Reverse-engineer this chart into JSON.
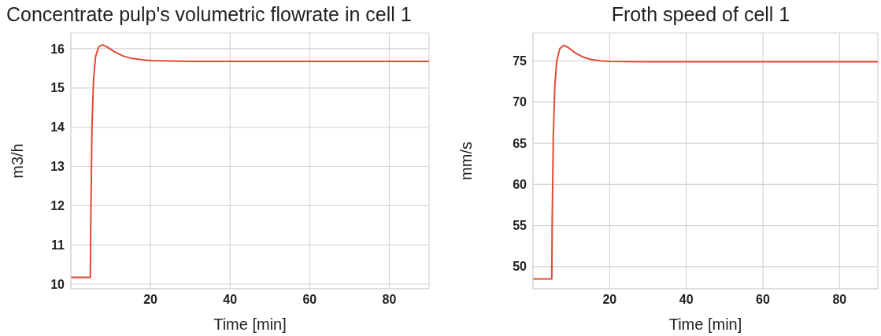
{
  "chart_data": [
    {
      "type": "line",
      "title": "Concentrate pulp's volumetric flowrate in cell 1",
      "xlabel": "Time [min]",
      "ylabel": "m3/h",
      "xlim": [
        0,
        90
      ],
      "xticks": [
        20,
        40,
        60,
        80
      ],
      "ylim": [
        9.88,
        16.4
      ],
      "yticks": [
        10,
        11,
        12,
        13,
        14,
        15,
        16
      ],
      "grid": true,
      "series": [
        {
          "color": "#e24a33",
          "x": [
            0,
            4.9,
            5.0,
            5.3,
            5.7,
            6.2,
            7,
            8,
            9,
            11,
            13,
            15,
            18,
            20,
            25,
            30,
            90
          ],
          "values": [
            10.17,
            10.17,
            11.5,
            14.0,
            15.2,
            15.8,
            16.05,
            16.1,
            16.05,
            15.92,
            15.82,
            15.76,
            15.72,
            15.7,
            15.69,
            15.68,
            15.68
          ]
        }
      ]
    },
    {
      "type": "line",
      "title": "Froth speed of cell 1",
      "xlabel": "Time [min]",
      "ylabel": "mm/s",
      "xlim": [
        0,
        90
      ],
      "xticks": [
        20,
        40,
        60,
        80
      ],
      "ylim": [
        47.3,
        78.4
      ],
      "yticks": [
        50,
        55,
        60,
        65,
        70,
        75
      ],
      "grid": true,
      "series": [
        {
          "color": "#e24a33",
          "x": [
            0,
            4.9,
            5.0,
            5.3,
            5.7,
            6.2,
            7,
            8,
            9,
            11,
            13,
            15,
            18,
            20,
            30,
            90
          ],
          "values": [
            48.5,
            48.5,
            55,
            66,
            72,
            75,
            76.5,
            76.9,
            76.7,
            76.0,
            75.5,
            75.2,
            75.0,
            74.95,
            74.9,
            74.9
          ]
        }
      ]
    }
  ]
}
